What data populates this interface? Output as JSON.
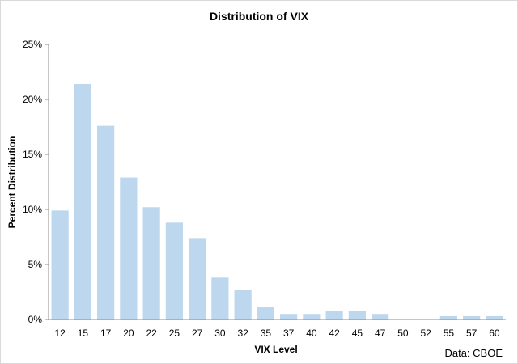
{
  "chart_data": {
    "type": "bar",
    "title": "Distribution of VIX",
    "xlabel": "VIX Level",
    "ylabel": "Percent Distribution",
    "source": "Data: CBOE",
    "categories": [
      "12",
      "15",
      "17",
      "20",
      "22",
      "25",
      "27",
      "30",
      "32",
      "35",
      "37",
      "40",
      "42",
      "45",
      "47",
      "50",
      "52",
      "55",
      "57",
      "60"
    ],
    "values": [
      9.9,
      21.4,
      17.6,
      12.9,
      10.2,
      8.8,
      7.4,
      3.8,
      2.7,
      1.1,
      0.5,
      0.5,
      0.8,
      0.8,
      0.5,
      0.0,
      0.0,
      0.3,
      0.3,
      0.3
    ],
    "ylim": [
      0,
      25
    ],
    "yticks": [
      0,
      5,
      10,
      15,
      20,
      25
    ],
    "ytick_labels": [
      "0%",
      "5%",
      "10%",
      "15%",
      "20%",
      "25%"
    ],
    "grid": false,
    "bar_color": "#bdd7ee",
    "axis_color": "#8c8c8c"
  }
}
